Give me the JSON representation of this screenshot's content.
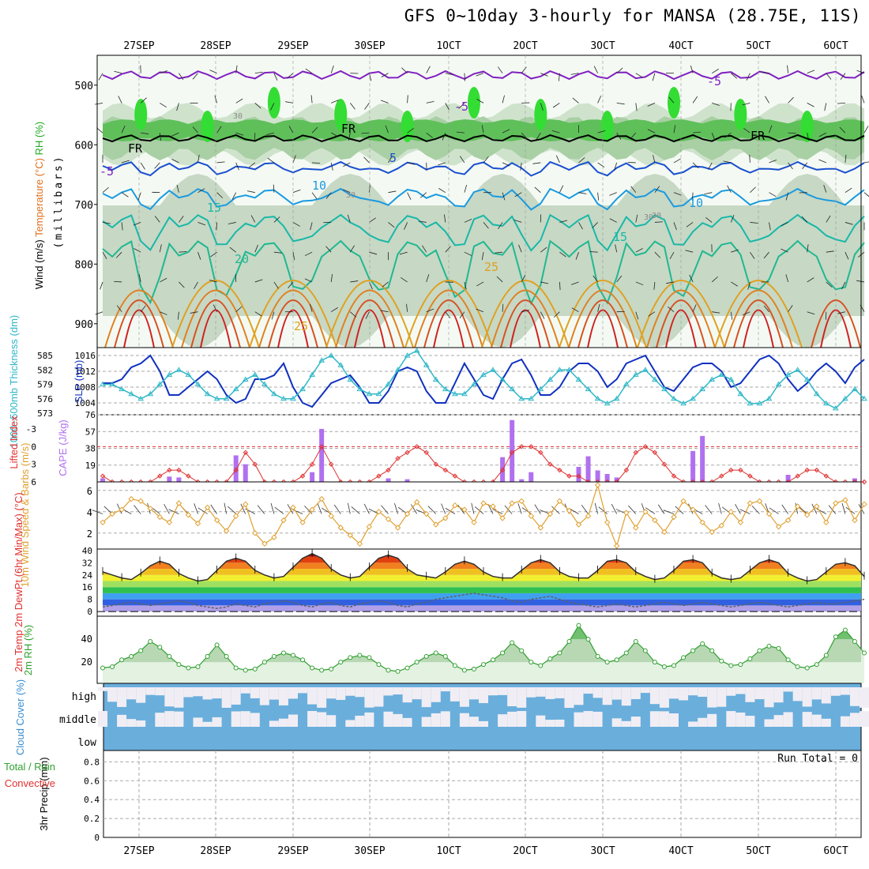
{
  "title": "GFS 0~10day 3-hourly for MANSA (28.75E, 11S)",
  "chart_data": {
    "type": "meteogram",
    "dates": [
      "27SEP",
      "28SEP",
      "29SEP",
      "30SEP",
      "1OCT",
      "2OCT",
      "3OCT",
      "4OCT",
      "5OCT",
      "6OCT"
    ],
    "panels": {
      "upper_air": {
        "ylabels": [
          {
            "text": "Wind (m/s)",
            "color": "#000000"
          },
          {
            "text": "Temperature (°C)",
            "color": "#e07020"
          },
          {
            "text": "RH (%)",
            "color": "#22aa22"
          },
          {
            "text": "(millibars)",
            "color": "#000000"
          }
        ],
        "y_ticks": [
          500,
          600,
          700,
          800,
          900
        ],
        "ylim": [
          450,
          940
        ],
        "contour_labels": [
          "-5",
          "-5",
          "-5",
          "5",
          "10",
          "10",
          "15",
          "15",
          "20",
          "25",
          "25",
          "FR",
          "FR",
          "FR",
          "30",
          "30",
          "30",
          "30"
        ]
      },
      "slp": {
        "ylabel_left": "1000~500mb Thickness (dm)",
        "ylabel_right": "SLP (mb)",
        "left_ticks": [
          573,
          576,
          579,
          582,
          585
        ],
        "right_ticks": [
          1004,
          1008,
          1012,
          1016
        ],
        "slp_mb": [
          1009,
          1009,
          1010,
          1013,
          1014,
          1016,
          1012,
          1006,
          1006,
          1008,
          1010,
          1012,
          1010,
          1006,
          1004,
          1005,
          1010,
          1010,
          1011,
          1014,
          1008,
          1004,
          1003,
          1006,
          1009,
          1010,
          1011,
          1008,
          1004,
          1004,
          1007,
          1012,
          1013,
          1012,
          1007,
          1004,
          1004,
          1009,
          1014,
          1010,
          1006,
          1005,
          1010,
          1014,
          1015,
          1011,
          1006,
          1006,
          1008,
          1012,
          1014,
          1014,
          1012,
          1008,
          1010,
          1014,
          1015,
          1016,
          1012,
          1008,
          1007,
          1010,
          1013,
          1014,
          1014,
          1012,
          1008,
          1009,
          1012,
          1015,
          1016,
          1014,
          1010,
          1007,
          1009,
          1012,
          1014,
          1012,
          1009,
          1013,
          1015
        ],
        "thickness_dm": [
          579,
          579,
          578,
          577,
          576,
          577,
          579,
          581,
          582,
          581,
          579,
          577,
          576,
          576,
          578,
          580,
          581,
          579,
          577,
          576,
          576,
          578,
          581,
          584,
          585,
          583,
          580,
          578,
          577,
          577,
          579,
          582,
          585,
          586,
          583,
          580,
          578,
          577,
          577,
          579,
          581,
          582,
          580,
          578,
          576,
          576,
          578,
          580,
          582,
          582,
          580,
          578,
          576,
          575,
          576,
          579,
          581,
          582,
          580,
          578,
          576,
          575,
          576,
          578,
          580,
          581,
          580,
          577,
          575,
          575,
          576,
          579,
          581,
          582,
          580,
          577,
          575,
          574,
          576,
          578,
          576
        ]
      },
      "stability": {
        "ylabel_left": "Lifted Index",
        "ylabel_right": "CAPE (J/kg)",
        "left_ticks": [
          "-3",
          "0",
          "3",
          "6"
        ],
        "right_ticks": [
          19,
          38,
          57,
          76
        ],
        "lifted_index": [
          5,
          6,
          6,
          6,
          6,
          6,
          5,
          4,
          4,
          5,
          6,
          6,
          6,
          6,
          4,
          1,
          3,
          6,
          6,
          6,
          6,
          5,
          3,
          0,
          3,
          6,
          6,
          6,
          6,
          5,
          4,
          2,
          1,
          0,
          1,
          3,
          4,
          5,
          6,
          6,
          6,
          6,
          4,
          1,
          0,
          0,
          1,
          3,
          4,
          5,
          5,
          6,
          6,
          6,
          6,
          4,
          1,
          0,
          1,
          3,
          5,
          6,
          6,
          6,
          6,
          5,
          4,
          4,
          5,
          6,
          6,
          6,
          6,
          5,
          4,
          4,
          5,
          6,
          6,
          6,
          6
        ],
        "cape_jkg": [
          4,
          0,
          0,
          0,
          0,
          0,
          0,
          6,
          5,
          0,
          0,
          0,
          0,
          0,
          30,
          20,
          0,
          0,
          0,
          0,
          0,
          0,
          11,
          60,
          0,
          0,
          0,
          0,
          0,
          0,
          4,
          0,
          3,
          0,
          0,
          0,
          0,
          0,
          0,
          0,
          0,
          0,
          28,
          70,
          3,
          11,
          0,
          0,
          0,
          0,
          17,
          29,
          13,
          9,
          5,
          0,
          0,
          0,
          0,
          0,
          0,
          0,
          35,
          52,
          0,
          0,
          0,
          0,
          0,
          0,
          0,
          0,
          8,
          0,
          0,
          0,
          0,
          0,
          0,
          4,
          0
        ]
      },
      "wind10m": {
        "ylabel": "10m Wind Speed & Barbs (m/s)",
        "y_ticks": [
          2,
          4,
          6
        ],
        "speed_ms": [
          3.0,
          3.8,
          4.2,
          5.2,
          5.0,
          4.3,
          3.5,
          3.0,
          4.8,
          3.7,
          2.9,
          4.4,
          3.2,
          2.2,
          3.6,
          4.7,
          2.0,
          1.0,
          1.6,
          3.2,
          4.4,
          3.0,
          4.2,
          5.2,
          3.6,
          2.5,
          1.8,
          1.0,
          2.6,
          4.0,
          3.3,
          2.5,
          3.8,
          4.9,
          3.8,
          2.8,
          3.4,
          4.6,
          4.2,
          3.0,
          4.8,
          4.5,
          3.4,
          4.8,
          5.0,
          3.6,
          2.5,
          3.8,
          5.0,
          4.1,
          2.8,
          3.6,
          6.5,
          3.0,
          0.8,
          3.9,
          2.5,
          4.0,
          3.2,
          2.1,
          3.5,
          5.0,
          4.2,
          3.0,
          2.1,
          2.7,
          4.0,
          3.0,
          4.8,
          5.0,
          3.8,
          2.6,
          3.2,
          4.5,
          3.7,
          4.5,
          3.0,
          4.8,
          5.1,
          3.2,
          4.7
        ]
      },
      "temperature": {
        "ylabel": "2m Temp 2m DewPt (6hr Min/Max) (°C)",
        "y_ticks": [
          0,
          8,
          16,
          24,
          32,
          40
        ],
        "temp_c": [
          26,
          24,
          22,
          21,
          25,
          30,
          33,
          31,
          25,
          22,
          20,
          21,
          27,
          33,
          35,
          33,
          27,
          24,
          22,
          23,
          29,
          35,
          38,
          35,
          28,
          24,
          22,
          23,
          29,
          35,
          37,
          35,
          28,
          24,
          23,
          22,
          26,
          31,
          33,
          31,
          26,
          23,
          22,
          22,
          27,
          32,
          34,
          32,
          26,
          23,
          22,
          22,
          27,
          33,
          34,
          32,
          26,
          23,
          21,
          22,
          27,
          33,
          34,
          32,
          25,
          22,
          21,
          22,
          27,
          32,
          34,
          32,
          25,
          22,
          20,
          21,
          26,
          31,
          32,
          30,
          23
        ],
        "dewpoint_c": [
          3,
          4,
          5,
          6,
          5,
          4,
          5,
          6,
          7,
          6,
          4,
          3,
          2,
          3,
          5,
          4,
          3,
          5,
          6,
          7,
          6,
          4,
          3,
          5,
          6,
          4,
          3,
          5,
          6,
          7,
          6,
          4,
          3,
          5,
          6,
          8,
          9,
          10,
          11,
          12,
          11,
          10,
          9,
          7,
          6,
          8,
          9,
          10,
          8,
          6,
          5,
          4,
          3,
          4,
          5,
          4,
          3,
          4,
          5,
          6,
          5,
          4,
          5,
          6,
          5,
          4,
          3,
          4,
          5,
          6,
          5,
          4,
          3,
          4,
          5,
          6,
          5,
          5,
          6,
          7,
          8
        ]
      },
      "rh": {
        "ylabel": "2m RH (%)",
        "y_ticks": [
          20,
          40
        ],
        "rh_pct": [
          15,
          16,
          22,
          25,
          30,
          38,
          33,
          25,
          18,
          15,
          16,
          25,
          35,
          25,
          15,
          13,
          14,
          20,
          25,
          28,
          26,
          22,
          15,
          13,
          14,
          20,
          24,
          26,
          24,
          18,
          13,
          12,
          15,
          20,
          25,
          28,
          25,
          17,
          13,
          14,
          18,
          22,
          28,
          37,
          30,
          20,
          17,
          23,
          28,
          38,
          52,
          40,
          25,
          20,
          22,
          28,
          38,
          30,
          20,
          16,
          17,
          24,
          30,
          36,
          30,
          21,
          17,
          18,
          23,
          30,
          34,
          32,
          22,
          16,
          15,
          18,
          26,
          42,
          48,
          38,
          28
        ]
      },
      "cloud": {
        "ylabel": "Cloud Cover (%)",
        "levels": [
          "high",
          "middle",
          "low"
        ]
      },
      "precip": {
        "ylabel_left": "3hr Precip (mm)",
        "ylabel_left_top": "Total / Rain",
        "ylabel_left_bottom": "Convective",
        "y_ticks": [
          "0",
          "0.2",
          "0.4",
          "0.6",
          "0.8"
        ],
        "run_total": "Run Total = 0"
      }
    }
  }
}
